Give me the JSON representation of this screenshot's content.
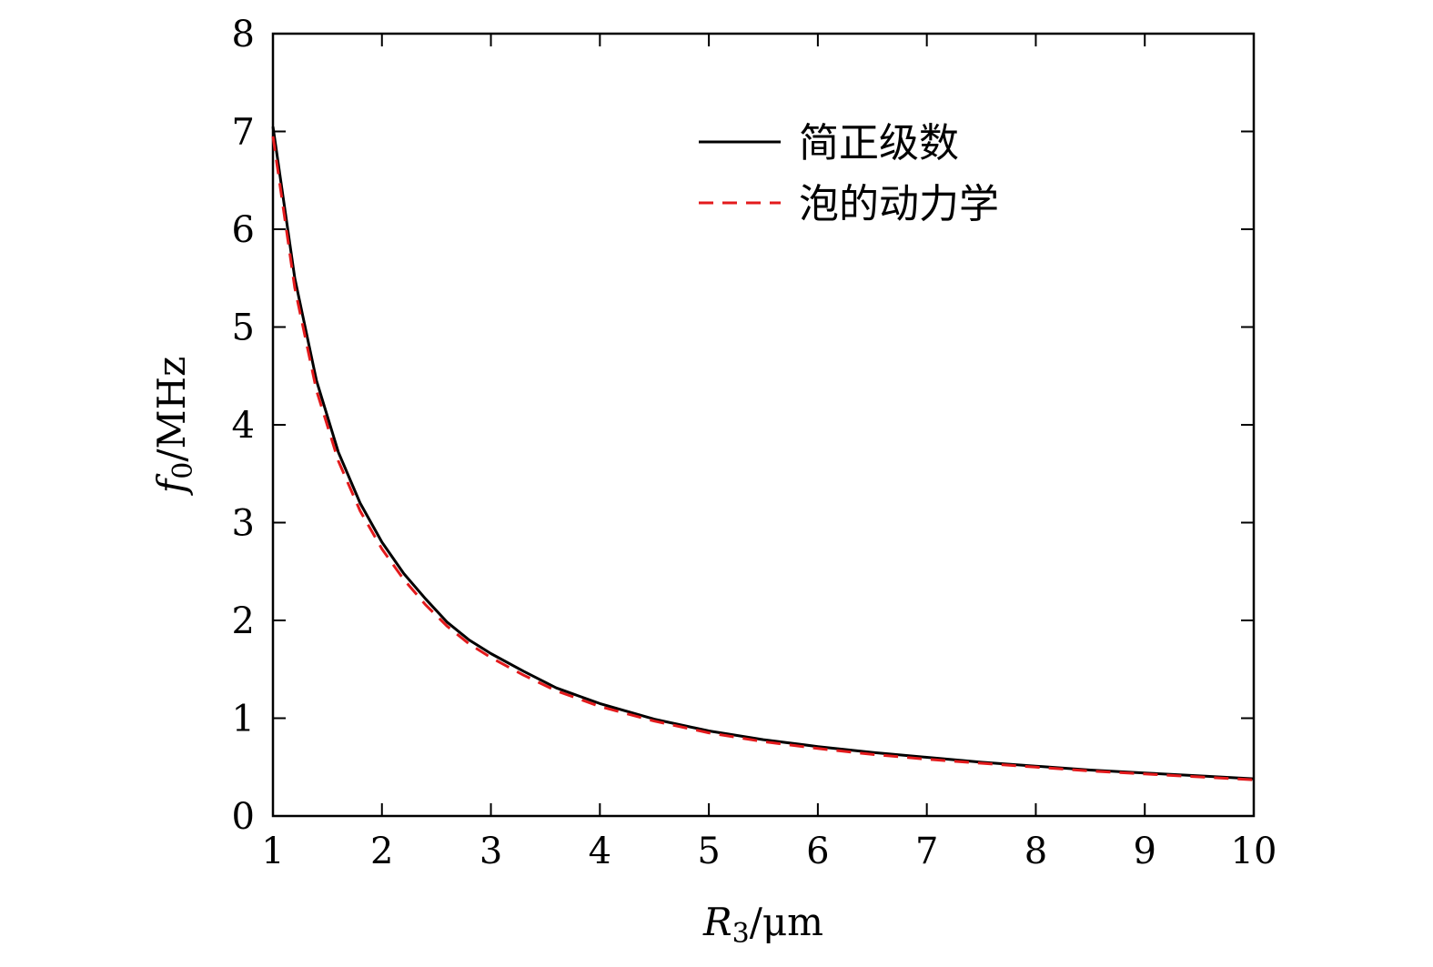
{
  "chart_data": {
    "type": "line",
    "title": "",
    "xlabel": {
      "symbol": "R",
      "subscript": "3",
      "unit": "/μm"
    },
    "ylabel": {
      "symbol": "f",
      "subscript": "0",
      "unit": "/MHz"
    },
    "xlim": [
      1,
      10
    ],
    "ylim": [
      0,
      8
    ],
    "xticks": [
      1,
      2,
      3,
      4,
      5,
      6,
      7,
      8,
      9,
      10
    ],
    "yticks": [
      0,
      1,
      2,
      3,
      4,
      5,
      6,
      7,
      8
    ],
    "grid": false,
    "legend_position": "top-right",
    "series": [
      {
        "name": "简正级数",
        "color": "#000000",
        "style": "solid",
        "x": [
          1.0,
          1.2,
          1.4,
          1.6,
          1.8,
          2.0,
          2.2,
          2.4,
          2.6,
          2.8,
          3.0,
          3.3,
          3.6,
          4.0,
          4.5,
          5.0,
          5.5,
          6.0,
          6.5,
          7.0,
          7.5,
          8.0,
          8.5,
          9.0,
          9.5,
          10.0
        ],
        "y": [
          7.05,
          5.5,
          4.45,
          3.72,
          3.2,
          2.8,
          2.48,
          2.22,
          1.98,
          1.8,
          1.66,
          1.48,
          1.31,
          1.15,
          0.99,
          0.87,
          0.78,
          0.71,
          0.65,
          0.6,
          0.55,
          0.51,
          0.47,
          0.44,
          0.41,
          0.38
        ]
      },
      {
        "name": "泡的动力学",
        "color": "#e31a1c",
        "style": "dashed",
        "x": [
          1.0,
          1.2,
          1.4,
          1.6,
          1.8,
          2.0,
          2.2,
          2.4,
          2.6,
          2.8,
          3.0,
          3.3,
          3.6,
          4.0,
          4.5,
          5.0,
          5.5,
          6.0,
          6.5,
          7.0,
          7.5,
          8.0,
          8.5,
          9.0,
          9.5,
          10.0
        ],
        "y": [
          6.95,
          5.4,
          4.35,
          3.63,
          3.12,
          2.73,
          2.42,
          2.16,
          1.94,
          1.76,
          1.62,
          1.44,
          1.28,
          1.12,
          0.97,
          0.85,
          0.76,
          0.69,
          0.63,
          0.58,
          0.54,
          0.5,
          0.46,
          0.43,
          0.4,
          0.37
        ]
      }
    ]
  }
}
